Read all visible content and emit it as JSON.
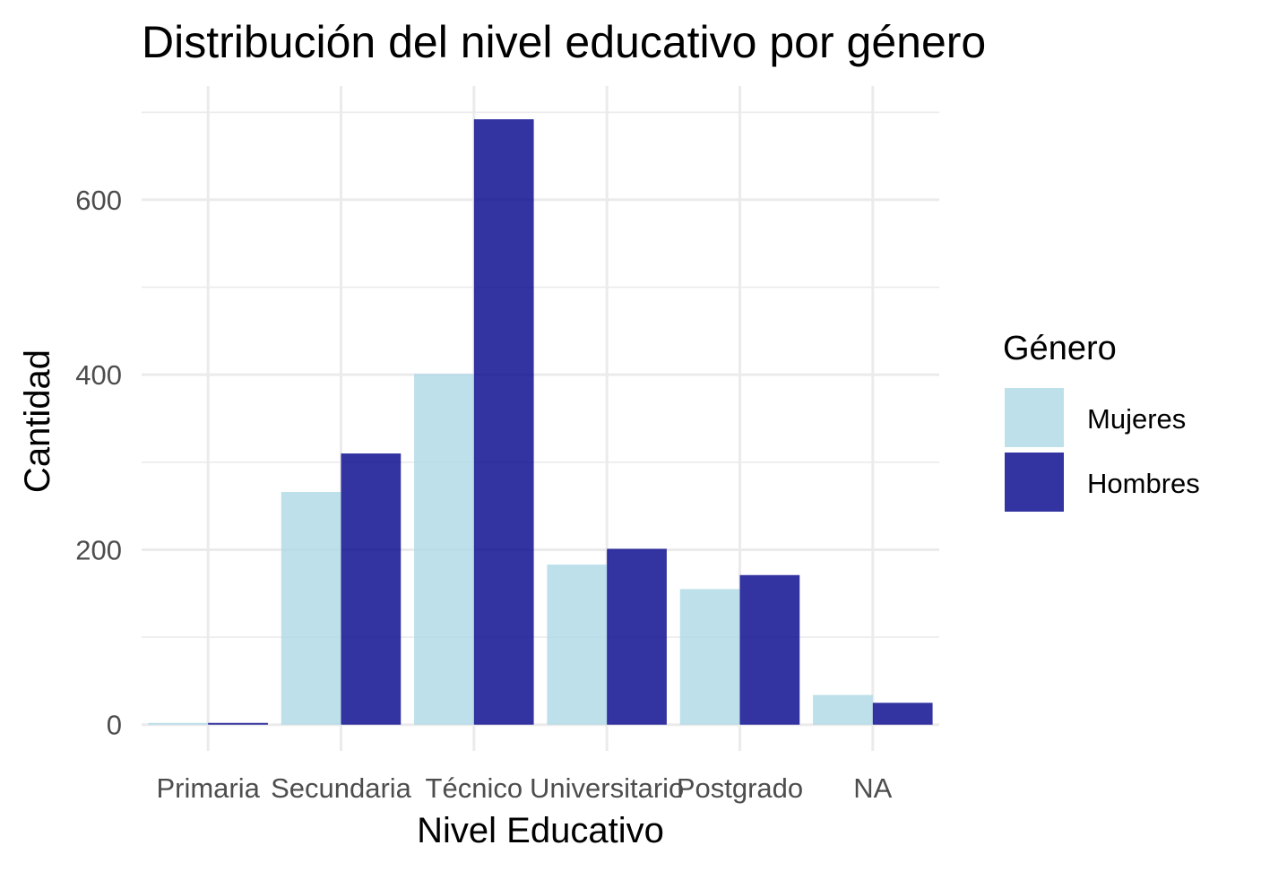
{
  "chart_data": {
    "type": "bar",
    "title": "Distribución del nivel educativo por género",
    "xlabel": "Nivel Educativo",
    "ylabel": "Cantidad",
    "categories": [
      "Primaria",
      "Secundaria",
      "Técnico",
      "Universitario",
      "Postgrado",
      "NA"
    ],
    "series": [
      {
        "name": "Mujeres",
        "color": "#add8e6",
        "values": [
          2,
          266,
          401,
          183,
          155,
          34
        ]
      },
      {
        "name": "Hombres",
        "color": "#00008b",
        "values": [
          2,
          310,
          692,
          201,
          171,
          25
        ]
      }
    ],
    "ylim": [
      -30,
      730
    ],
    "yticks": [
      0,
      200,
      400,
      600
    ],
    "grid": true,
    "legend": {
      "title": "Género",
      "position": "right"
    }
  }
}
